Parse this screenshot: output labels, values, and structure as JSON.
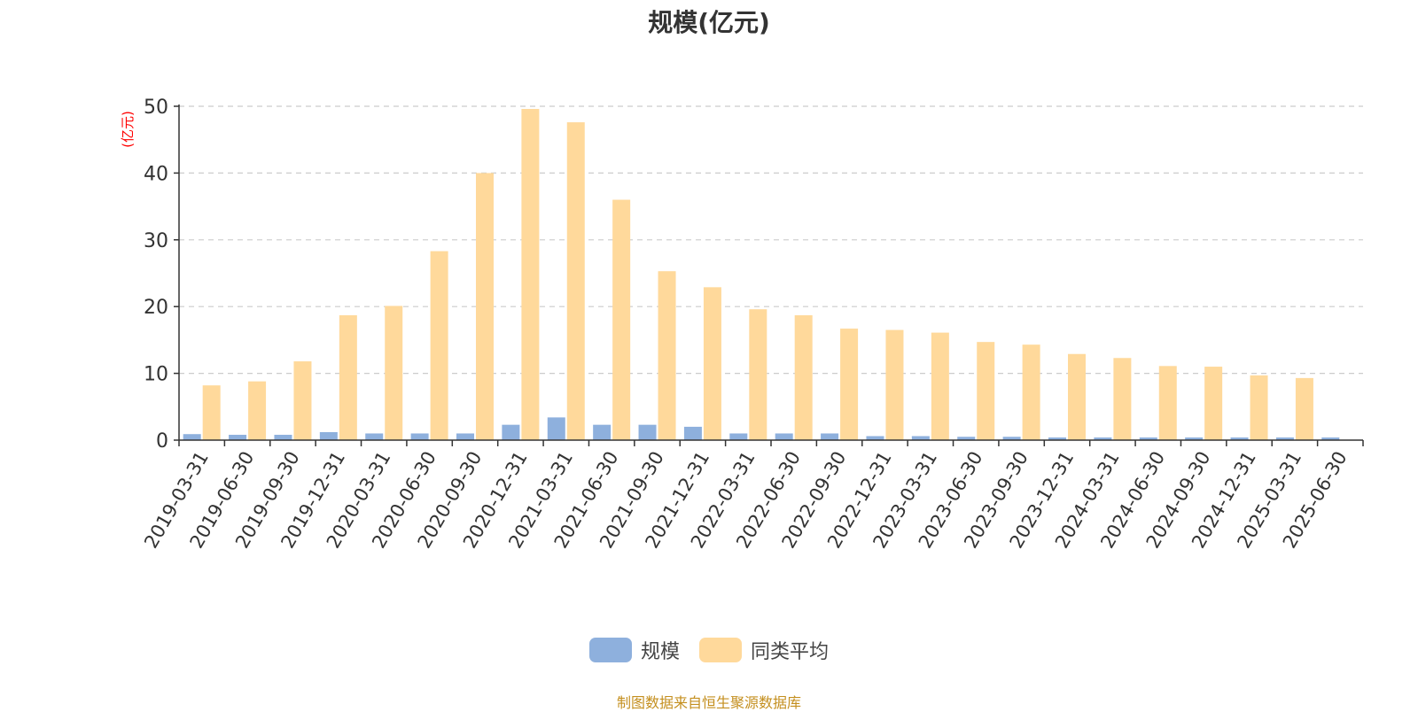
{
  "chart_data": {
    "type": "bar",
    "title": "规模(亿元)",
    "ylabel": "(亿元)",
    "xlabel": "",
    "ylim": [
      0,
      50
    ],
    "yticks": [
      0,
      10,
      20,
      30,
      40,
      50
    ],
    "grid": true,
    "legend_position": "bottom-center",
    "categories": [
      "2019-03-31",
      "2019-06-30",
      "2019-09-30",
      "2019-12-31",
      "2020-03-31",
      "2020-06-30",
      "2020-09-30",
      "2020-12-31",
      "2021-03-31",
      "2021-06-30",
      "2021-09-30",
      "2021-12-31",
      "2022-03-31",
      "2022-06-30",
      "2022-09-30",
      "2022-12-31",
      "2023-03-31",
      "2023-06-30",
      "2023-09-30",
      "2023-12-31",
      "2024-03-31",
      "2024-06-30",
      "2024-09-30",
      "2024-12-31",
      "2025-03-31",
      "2025-06-30"
    ],
    "series": [
      {
        "name": "规模",
        "color": "#8eb0dd",
        "values": [
          0.9,
          0.8,
          0.8,
          1.2,
          1.0,
          1.0,
          1.0,
          2.3,
          3.4,
          2.3,
          2.3,
          2.0,
          1.0,
          1.0,
          1.0,
          0.6,
          0.6,
          0.5,
          0.5,
          0.4,
          0.4,
          0.4,
          0.4,
          0.4,
          0.4,
          0.4
        ]
      },
      {
        "name": "同类平均",
        "color": "#ffd99b",
        "values": [
          8.2,
          8.8,
          11.8,
          18.7,
          20.1,
          28.3,
          40.0,
          49.6,
          47.6,
          36.0,
          25.3,
          22.9,
          19.6,
          18.7,
          16.7,
          16.5,
          16.1,
          14.7,
          14.3,
          12.9,
          12.3,
          11.1,
          11.0,
          9.7,
          9.3,
          null
        ]
      }
    ],
    "source_note": "制图数据来自恒生聚源数据库",
    "colors": {
      "axis": "#333333",
      "grid": "#cccccc",
      "ylabel": "#ff0000",
      "source": "#c48f1f"
    }
  }
}
